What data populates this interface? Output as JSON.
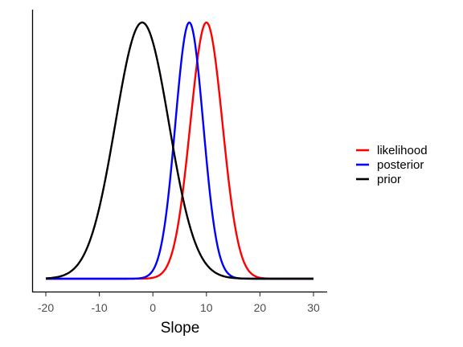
{
  "chart_data": {
    "type": "line",
    "title": "",
    "xlabel": "Slope",
    "ylabel": "",
    "xlim": [
      -20,
      30
    ],
    "ylim": [
      0,
      1
    ],
    "x_ticks": [
      -20,
      -10,
      0,
      10,
      20,
      30
    ],
    "x_tick_labels": [
      "-20",
      "-10",
      "0",
      "10",
      "20",
      "30"
    ],
    "y_ticks_shown": false,
    "grid": false,
    "legend_position": "right",
    "series": [
      {
        "name": "likelihood",
        "color": "#ff0000",
        "mean": 10,
        "sd": 3,
        "peak": 1.0
      },
      {
        "name": "posterior",
        "color": "#0000ff",
        "mean": 6.8,
        "sd": 2.6,
        "peak": 1.0
      },
      {
        "name": "prior",
        "color": "#000000",
        "mean": -2,
        "sd": 5,
        "peak": 1.0
      }
    ],
    "x_range": [
      -20,
      30
    ],
    "note": ""
  }
}
